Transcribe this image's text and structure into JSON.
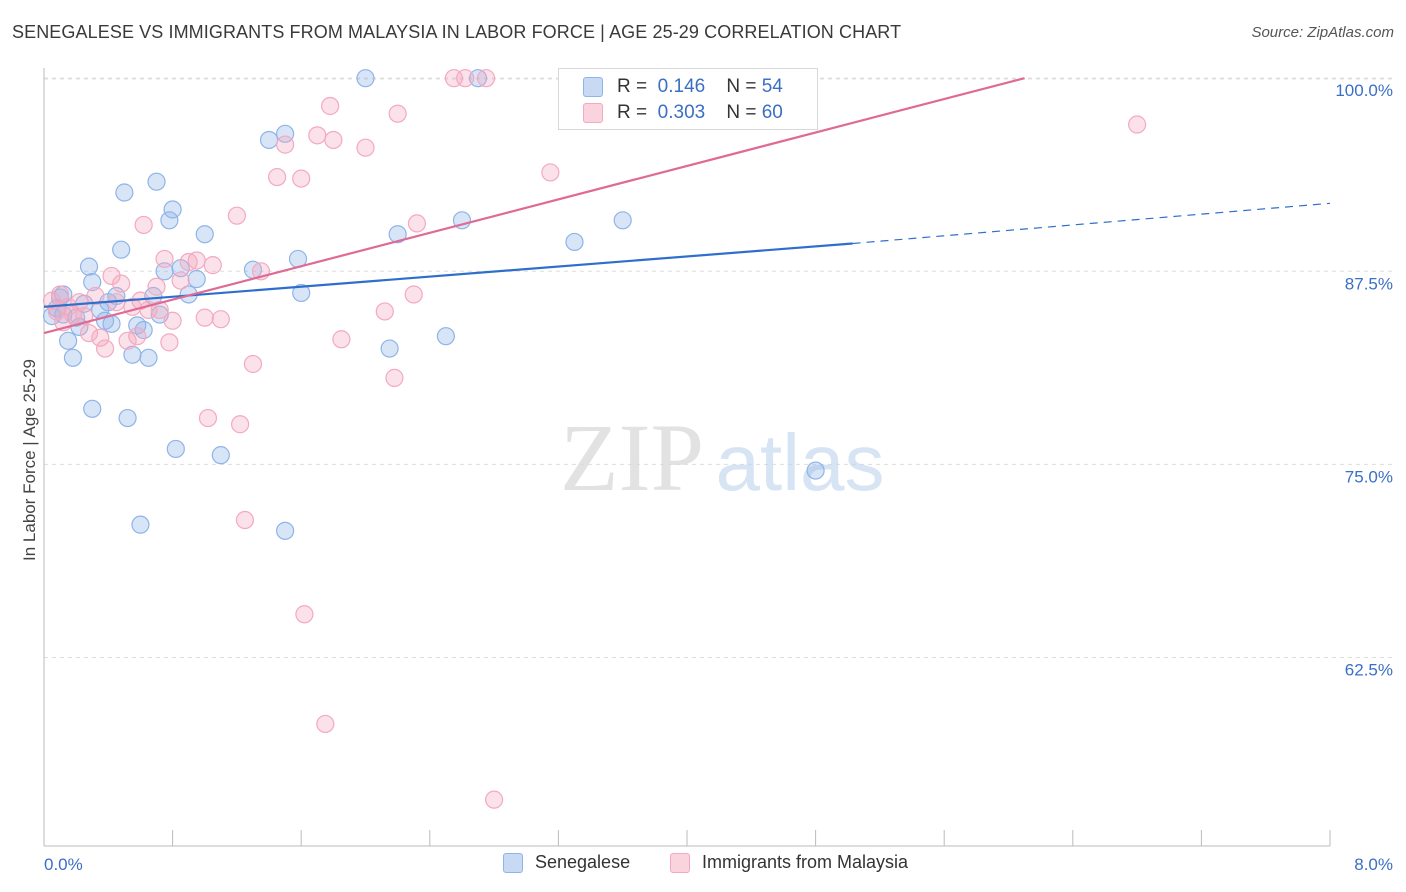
{
  "title": "SENEGALESE VS IMMIGRANTS FROM MALAYSIA IN LABOR FORCE | AGE 25-29 CORRELATION CHART",
  "source": "Source: ZipAtlas.com",
  "watermark": {
    "zip": "ZIP",
    "atlas": "atlas"
  },
  "legend_top": {
    "rows": [
      {
        "r_label": "R =",
        "r_value": "0.146",
        "n_label": "N =",
        "n_value": "54",
        "color": "#8fb4e8"
      },
      {
        "r_label": "R =",
        "r_value": "0.303",
        "n_label": "N =",
        "n_value": "60",
        "color": "#f4a9c0"
      }
    ]
  },
  "legend_bottom": [
    {
      "label": "Senegalese",
      "color": "#8fb4e8"
    },
    {
      "label": "Immigrants from Malaysia",
      "color": "#f4a9c0"
    }
  ],
  "chart_data": {
    "type": "scatter",
    "title": "SENEGALESE VS IMMIGRANTS FROM MALAYSIA IN LABOR FORCE | AGE 25-29 CORRELATION CHART",
    "xlabel": "",
    "ylabel": "In Labor Force | Age 25-29",
    "xlim": [
      0,
      8
    ],
    "ylim": [
      50.3,
      100.4
    ],
    "x_tick_labels": [
      "0.0%",
      "8.0%"
    ],
    "y_ticks": [
      62.5,
      75.0,
      87.5,
      100.0
    ],
    "y_tick_labels": [
      "62.5%",
      "75.0%",
      "87.5%",
      "100.0%"
    ],
    "grid": "horizontal dashed",
    "series": [
      {
        "name": "Senegalese",
        "color": "#8fb4e8",
        "line_color": "#2f6fcc",
        "trend": {
          "x": [
            0.0,
            5.03
          ],
          "y": [
            85.2,
            89.3
          ],
          "dashed_to": [
            8.0,
            91.9
          ]
        },
        "points": [
          [
            0.05,
            84.6
          ],
          [
            0.1,
            85.8
          ],
          [
            0.12,
            84.7
          ],
          [
            0.15,
            83.0
          ],
          [
            0.18,
            81.9
          ],
          [
            0.2,
            84.5
          ],
          [
            0.25,
            85.4
          ],
          [
            0.28,
            87.8
          ],
          [
            0.3,
            78.6
          ],
          [
            0.3,
            86.8
          ],
          [
            0.35,
            85.0
          ],
          [
            0.38,
            84.3
          ],
          [
            0.42,
            84.1
          ],
          [
            0.45,
            85.9
          ],
          [
            0.48,
            88.9
          ],
          [
            0.5,
            92.6
          ],
          [
            0.52,
            78.0
          ],
          [
            0.55,
            82.1
          ],
          [
            0.6,
            71.1
          ],
          [
            0.62,
            83.7
          ],
          [
            0.65,
            81.9
          ],
          [
            0.68,
            85.9
          ],
          [
            0.7,
            93.3
          ],
          [
            0.72,
            84.7
          ],
          [
            0.75,
            87.5
          ],
          [
            0.78,
            90.8
          ],
          [
            0.8,
            91.5
          ],
          [
            0.82,
            76.0
          ],
          [
            0.85,
            87.7
          ],
          [
            0.9,
            86.0
          ],
          [
            0.95,
            87.0
          ],
          [
            1.0,
            89.9
          ],
          [
            1.1,
            75.6
          ],
          [
            1.3,
            87.6
          ],
          [
            1.4,
            96.0
          ],
          [
            1.5,
            96.4
          ],
          [
            1.5,
            70.7
          ],
          [
            1.6,
            86.1
          ],
          [
            1.58,
            88.3
          ],
          [
            2.0,
            100.0
          ],
          [
            2.15,
            82.5
          ],
          [
            2.2,
            89.9
          ],
          [
            2.5,
            83.3
          ],
          [
            2.6,
            90.8
          ],
          [
            2.7,
            100.0
          ],
          [
            3.3,
            89.4
          ],
          [
            3.4,
            100.0
          ],
          [
            3.6,
            90.8
          ],
          [
            4.8,
            74.6
          ],
          [
            0.08,
            85.1
          ],
          [
            0.22,
            83.9
          ],
          [
            0.4,
            85.5
          ],
          [
            0.12,
            86.0
          ],
          [
            0.58,
            84.0
          ]
        ]
      },
      {
        "name": "Immigrants from Malaysia",
        "color": "#f4a9c0",
        "line_color": "#e06a96",
        "trend": {
          "x": [
            0.0,
            6.1
          ],
          "y": [
            83.5,
            100.0
          ]
        },
        "points": [
          [
            0.05,
            85.6
          ],
          [
            0.08,
            84.9
          ],
          [
            0.1,
            86.0
          ],
          [
            0.12,
            84.2
          ],
          [
            0.15,
            85.2
          ],
          [
            0.18,
            84.7
          ],
          [
            0.22,
            85.5
          ],
          [
            0.28,
            83.5
          ],
          [
            0.32,
            85.9
          ],
          [
            0.35,
            83.2
          ],
          [
            0.38,
            82.5
          ],
          [
            0.42,
            87.2
          ],
          [
            0.45,
            85.5
          ],
          [
            0.48,
            86.7
          ],
          [
            0.52,
            83.0
          ],
          [
            0.55,
            85.2
          ],
          [
            0.58,
            83.3
          ],
          [
            0.62,
            90.5
          ],
          [
            0.65,
            85.0
          ],
          [
            0.7,
            86.5
          ],
          [
            0.72,
            85.0
          ],
          [
            0.75,
            88.3
          ],
          [
            0.78,
            82.9
          ],
          [
            0.8,
            84.3
          ],
          [
            0.85,
            86.9
          ],
          [
            0.9,
            88.1
          ],
          [
            0.95,
            88.2
          ],
          [
            1.0,
            84.5
          ],
          [
            1.02,
            78.0
          ],
          [
            1.05,
            87.9
          ],
          [
            1.1,
            84.4
          ],
          [
            1.2,
            91.1
          ],
          [
            1.22,
            77.6
          ],
          [
            1.25,
            71.4
          ],
          [
            1.3,
            81.5
          ],
          [
            1.35,
            87.5
          ],
          [
            1.45,
            93.6
          ],
          [
            1.5,
            95.7
          ],
          [
            1.6,
            93.5
          ],
          [
            1.62,
            65.3
          ],
          [
            1.7,
            96.3
          ],
          [
            1.75,
            58.2
          ],
          [
            1.78,
            98.2
          ],
          [
            1.8,
            96.0
          ],
          [
            1.85,
            83.1
          ],
          [
            2.0,
            95.5
          ],
          [
            2.12,
            84.9
          ],
          [
            2.18,
            80.6
          ],
          [
            2.2,
            97.7
          ],
          [
            2.3,
            86.0
          ],
          [
            2.32,
            90.6
          ],
          [
            2.55,
            100.0
          ],
          [
            2.62,
            100.0
          ],
          [
            2.75,
            100.0
          ],
          [
            2.8,
            53.3
          ],
          [
            3.15,
            93.9
          ],
          [
            3.4,
            100.0
          ],
          [
            6.8,
            97.0
          ],
          [
            0.6,
            85.6
          ],
          [
            0.25,
            84.6
          ]
        ]
      }
    ]
  }
}
